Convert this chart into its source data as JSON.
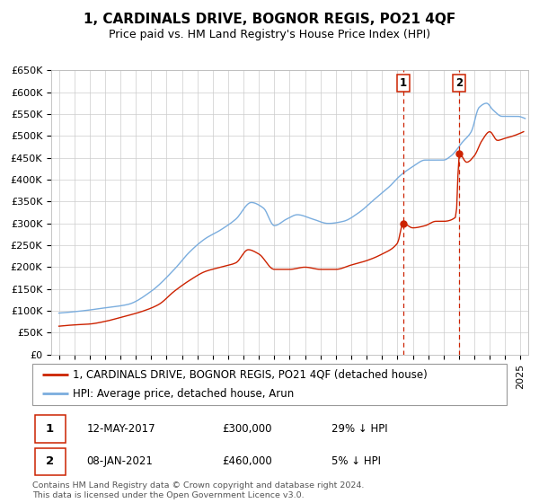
{
  "title": "1, CARDINALS DRIVE, BOGNOR REGIS, PO21 4QF",
  "subtitle": "Price paid vs. HM Land Registry's House Price Index (HPI)",
  "ylim": [
    0,
    650000
  ],
  "yticks": [
    0,
    50000,
    100000,
    150000,
    200000,
    250000,
    300000,
    350000,
    400000,
    450000,
    500000,
    550000,
    600000,
    650000
  ],
  "xlim_start": 1994.5,
  "xlim_end": 2025.5,
  "background_color": "#ffffff",
  "grid_color": "#cccccc",
  "hpi_color": "#7aadde",
  "price_color": "#cc2200",
  "legend_label_price": "1, CARDINALS DRIVE, BOGNOR REGIS, PO21 4QF (detached house)",
  "legend_label_hpi": "HPI: Average price, detached house, Arun",
  "sale1_date": 2017.37,
  "sale1_price": 300000,
  "sale1_label": "1",
  "sale1_text": "12-MAY-2017",
  "sale1_amount": "£300,000",
  "sale1_hpi": "29% ↓ HPI",
  "sale2_date": 2021.02,
  "sale2_price": 460000,
  "sale2_label": "2",
  "sale2_text": "08-JAN-2021",
  "sale2_amount": "£460,000",
  "sale2_hpi": "5% ↓ HPI",
  "footnote": "Contains HM Land Registry data © Crown copyright and database right 2024.\nThis data is licensed under the Open Government Licence v3.0.",
  "title_fontsize": 11,
  "subtitle_fontsize": 9,
  "tick_fontsize": 8,
  "legend_fontsize": 8.5,
  "annotation_fontsize": 9
}
